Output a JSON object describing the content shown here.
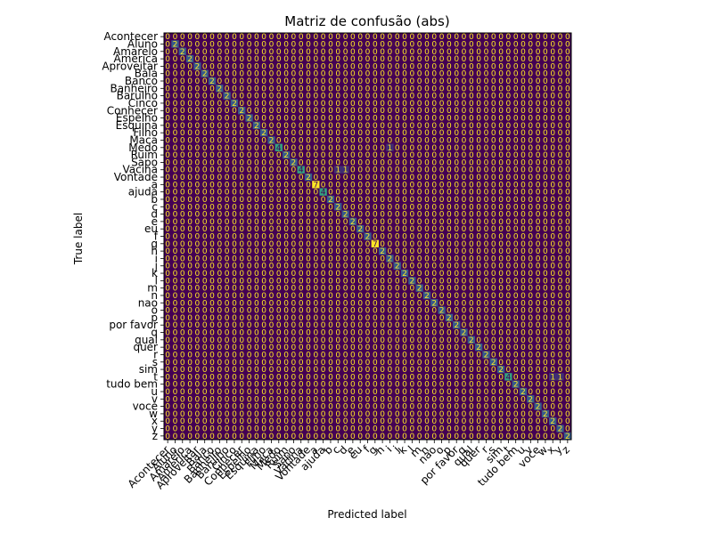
{
  "chart_data": {
    "type": "heatmap",
    "title": "Matriz de confusão (abs)",
    "xlabel": "Predicted label",
    "ylabel": "True label",
    "labels": [
      "Acontecer",
      "Aluno",
      "Amarelo",
      "America",
      "Aproveitar",
      "Bala",
      "Banco",
      "Banheiro",
      "Barulho",
      "Cinco",
      "Conhecer",
      "Espelho",
      "Esquina",
      "Filho",
      "Maca",
      "Medo",
      "Ruim",
      "Sapo",
      "Vacina",
      "Vontade",
      "a",
      "ajuda",
      "b",
      "c",
      "d",
      "e",
      "eu",
      "f",
      "g",
      "h",
      "i",
      "j",
      "k",
      "l",
      "m",
      "n",
      "nao",
      "o",
      "p",
      "por favor",
      "q",
      "qual",
      "quer",
      "r",
      "s",
      "sim",
      "t",
      "tudo bem",
      "u",
      "v",
      "voce",
      "w",
      "x",
      "y",
      "z"
    ],
    "diagonal": [
      0,
      2,
      2,
      2,
      2,
      2,
      2,
      2,
      2,
      2,
      2,
      2,
      2,
      2,
      2,
      4,
      2,
      2,
      4,
      2,
      7,
      4,
      2,
      2,
      2,
      2,
      2,
      2,
      7,
      2,
      2,
      2,
      2,
      2,
      2,
      2,
      2,
      2,
      2,
      2,
      2,
      2,
      2,
      2,
      2,
      2,
      4,
      2,
      2,
      2,
      2,
      2,
      2,
      2,
      2
    ],
    "off_diagonal": [
      {
        "true": "Medo",
        "pred": "i",
        "value": 1
      },
      {
        "true": "Vacina",
        "pred": "c",
        "value": 1
      },
      {
        "true": "Vacina",
        "pred": "d",
        "value": 1
      },
      {
        "true": "t",
        "pred": "x",
        "value": 1
      },
      {
        "true": "t",
        "pred": "y",
        "value": 1
      }
    ],
    "cell_text": "0",
    "colormap": [
      "#440154",
      "#3b528b",
      "#21918c",
      "#5ec962",
      "#fde725"
    ],
    "vmin": 0,
    "vmax": 7,
    "grid": false
  }
}
